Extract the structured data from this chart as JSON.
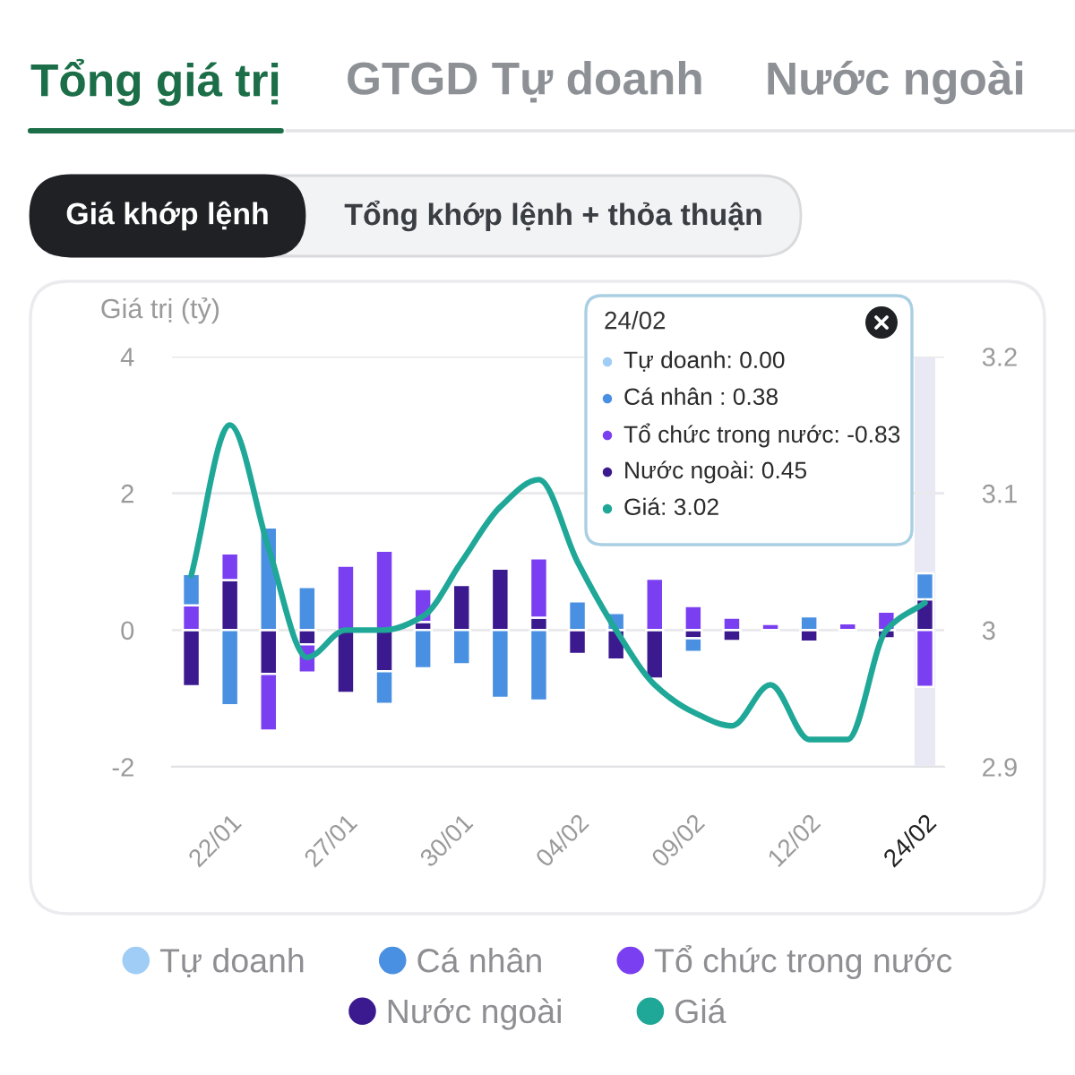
{
  "chart_data": {
    "type": "bar",
    "stacked": true,
    "categories": [
      null,
      "22/01",
      null,
      null,
      "27/01",
      null,
      null,
      "30/01",
      null,
      null,
      "04/02",
      null,
      null,
      "09/02",
      null,
      null,
      "12/02",
      null,
      null,
      "24/02"
    ],
    "ylabel": "Giá trị (tỷ)",
    "ylim": [
      -2,
      4
    ],
    "yticks": [
      -2,
      0,
      2,
      4
    ],
    "y2lim": [
      2.9,
      3.2
    ],
    "y2ticks": [
      2.9,
      3,
      3.1,
      3.2
    ],
    "grid": "y",
    "legend": "bottom",
    "series": [
      {
        "name": "Nước ngoài",
        "color": "#3b1a8f",
        "values": [
          -0.82,
          0.73,
          -0.64,
          -0.21,
          -0.92,
          -0.6,
          0.12,
          0.66,
          0.9,
          0.18,
          -0.35,
          -0.43,
          -0.71,
          -0.12,
          -0.16,
          0,
          -0.17,
          0,
          -0.12,
          0.45
        ]
      },
      {
        "name": "Tổ chức trong nước",
        "color": "#7b3ff2",
        "values": [
          0.36,
          0.39,
          -0.83,
          -0.41,
          0.94,
          1.16,
          0.48,
          0,
          0,
          0.87,
          0,
          0,
          0.75,
          0.35,
          0.18,
          0.09,
          0,
          0.1,
          0.27,
          -0.83
        ]
      },
      {
        "name": "Cá nhân",
        "color": "#4a90e2",
        "values": [
          0.46,
          -1.1,
          1.5,
          0.63,
          0,
          -0.48,
          -0.56,
          -0.5,
          -0.99,
          -1.03,
          0.42,
          0.25,
          0,
          -0.2,
          0,
          0,
          0.2,
          0,
          0,
          0.38
        ]
      },
      {
        "name": "Tự doanh",
        "color": "#a0cdf5",
        "values": [
          0,
          0,
          0,
          0,
          0,
          0,
          0,
          0,
          0,
          0,
          0,
          0,
          0,
          0,
          0,
          0,
          0,
          0,
          0,
          0.0
        ]
      },
      {
        "name": "Giá",
        "type": "line",
        "axis": "y2",
        "color": "#1fa797",
        "values": [
          3.04,
          3.15,
          3.06,
          2.98,
          3.0,
          3.0,
          3.01,
          3.05,
          3.09,
          3.11,
          3.05,
          3.0,
          2.96,
          2.94,
          2.93,
          2.96,
          2.92,
          2.92,
          3.0,
          3.02
        ]
      }
    ],
    "bands": [
      {
        "axis": "x",
        "from": "24/02",
        "to": "24/02",
        "color": "#e9e9f5"
      }
    ],
    "annotations": [
      "Tổng giá trị",
      "GTGD Tự doanh",
      "Nước ngoài",
      "Giá khớp lệnh",
      "Tổng khớp lệnh + thỏa thuận",
      "24/02",
      "Tự doanh: 0.00",
      "Cá nhân : 0.38",
      "Tổ chức trong nước: -0.83",
      "Nước ngoài: 0.45",
      "Giá: 3.02"
    ]
  }
}
